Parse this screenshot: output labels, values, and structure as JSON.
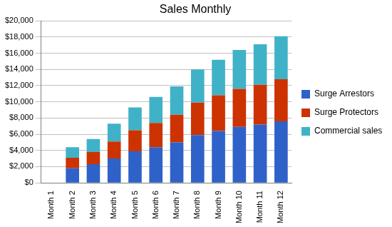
{
  "chart_data": {
    "type": "bar",
    "title": "Sales Monthly",
    "categories": [
      "Month 1",
      "Month 2",
      "Month 3",
      "Month 4",
      "Month 5",
      "Month 6",
      "Month 7",
      "Month 8",
      "Month 9",
      "Month 10",
      "Month 11",
      "Month 12"
    ],
    "series": [
      {
        "name": "Surge Arrestors",
        "color": "#2e62c9",
        "values": [
          0,
          1800,
          2300,
          3000,
          3900,
          4400,
          5000,
          5900,
          6400,
          6900,
          7200,
          7600
        ]
      },
      {
        "name": "Surge Protectors",
        "color": "#cc3300",
        "values": [
          0,
          1300,
          1500,
          2100,
          2600,
          3000,
          3400,
          4000,
          4400,
          4700,
          4900,
          5200
        ]
      },
      {
        "name": "Commercial sales",
        "color": "#40b2c8",
        "values": [
          0,
          1300,
          1600,
          2200,
          2800,
          3200,
          3500,
          4100,
          4400,
          4800,
          5000,
          5300
        ]
      }
    ],
    "stacked": true,
    "ylim": [
      0,
      20000
    ],
    "yticks": [
      {
        "value": 0,
        "label": "$0"
      },
      {
        "value": 2000,
        "label": "$2,000"
      },
      {
        "value": 4000,
        "label": "$4,000"
      },
      {
        "value": 6000,
        "label": "$6,000"
      },
      {
        "value": 8000,
        "label": "$8,000"
      },
      {
        "value": 10000,
        "label": "$10,000"
      },
      {
        "value": 12000,
        "label": "$12,000"
      },
      {
        "value": 14000,
        "label": "$14,000"
      },
      {
        "value": 16000,
        "label": "$16,000"
      },
      {
        "value": 18000,
        "label": "$18,000"
      },
      {
        "value": 20000,
        "label": "$20,000"
      }
    ],
    "grid": true,
    "legend": "right"
  }
}
